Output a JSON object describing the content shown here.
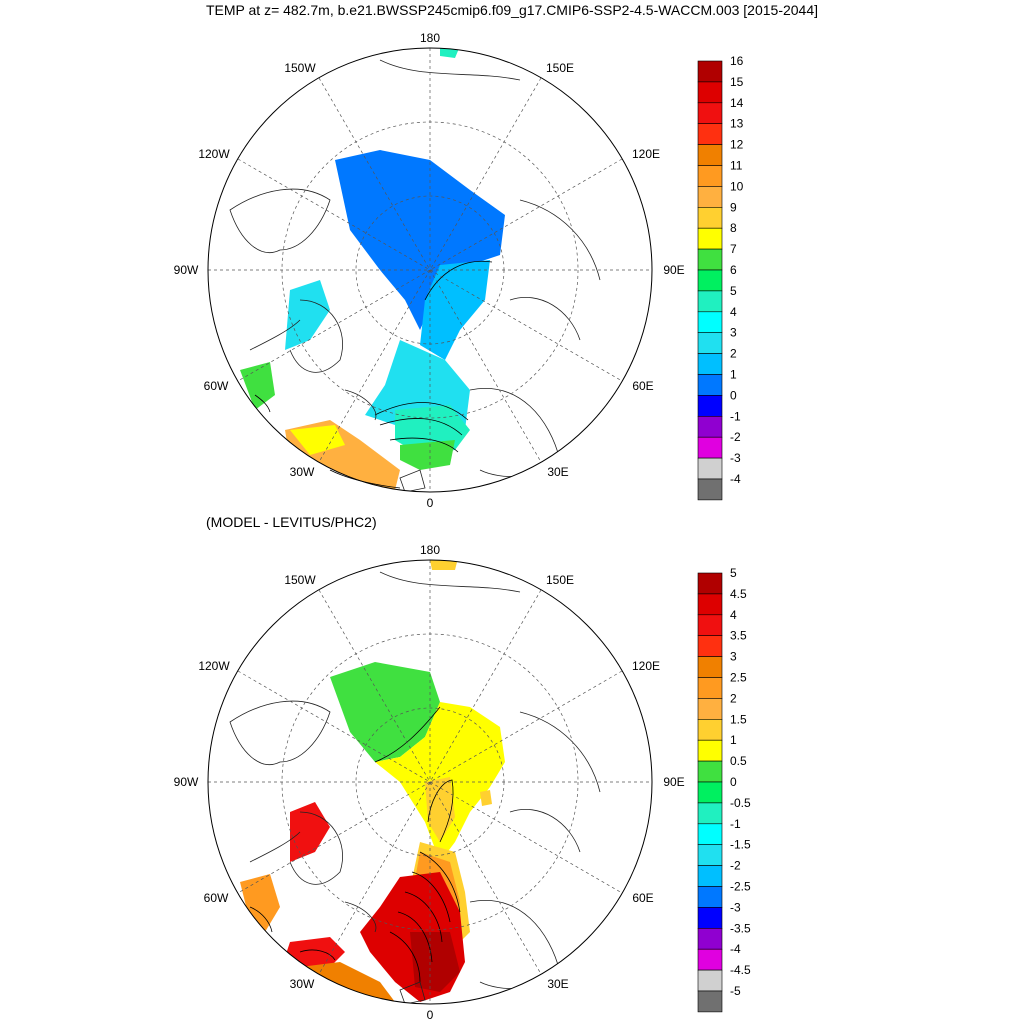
{
  "title": "TEMP at z= 482.7m, b.e21.BWSSP245cmip6.f09_g17.CMIP6-SSP2-4.5-WACCM.003 [2015-2044]",
  "subtitle": "(MODEL - LEVITUS/PHC2)",
  "longitude_labels": [
    "180",
    "150E",
    "120E",
    "90E",
    "60E",
    "30E",
    "0",
    "30W",
    "60W",
    "90W",
    "120W",
    "150W"
  ],
  "top_colorbar": {
    "ticks": [
      "16",
      "15",
      "14",
      "13",
      "12",
      "11",
      "10",
      "9",
      "8",
      "7",
      "6",
      "5",
      "4",
      "3",
      "2",
      "1",
      "0",
      "-1",
      "-2",
      "-3",
      "-4"
    ],
    "colors": [
      "#b00000",
      "#dd0000",
      "#f01010",
      "#ff3010",
      "#f08000",
      "#ff9a20",
      "#ffb040",
      "#ffd030",
      "#ffff00",
      "#40e040",
      "#00f060",
      "#20f0c0",
      "#00ffff",
      "#20e0f0",
      "#00bfff",
      "#0078ff",
      "#0000ff",
      "#9000d0",
      "#e000e0",
      "#d0d0d0",
      "#707070"
    ]
  },
  "bottom_colorbar": {
    "ticks": [
      "5",
      "4.5",
      "4",
      "3.5",
      "3",
      "2.5",
      "2",
      "1.5",
      "1",
      "0.5",
      "0",
      "-0.5",
      "-1",
      "-1.5",
      "-2",
      "-2.5",
      "-3",
      "-3.5",
      "-4",
      "-4.5",
      "-5"
    ],
    "colors": [
      "#b00000",
      "#dd0000",
      "#f01010",
      "#ff3010",
      "#f08000",
      "#ff9a20",
      "#ffb040",
      "#ffd030",
      "#ffff00",
      "#40e040",
      "#00f060",
      "#20f0c0",
      "#00ffff",
      "#20e0f0",
      "#00bfff",
      "#0078ff",
      "#0000ff",
      "#9000d0",
      "#e000e0",
      "#d0d0d0",
      "#707070"
    ]
  }
}
